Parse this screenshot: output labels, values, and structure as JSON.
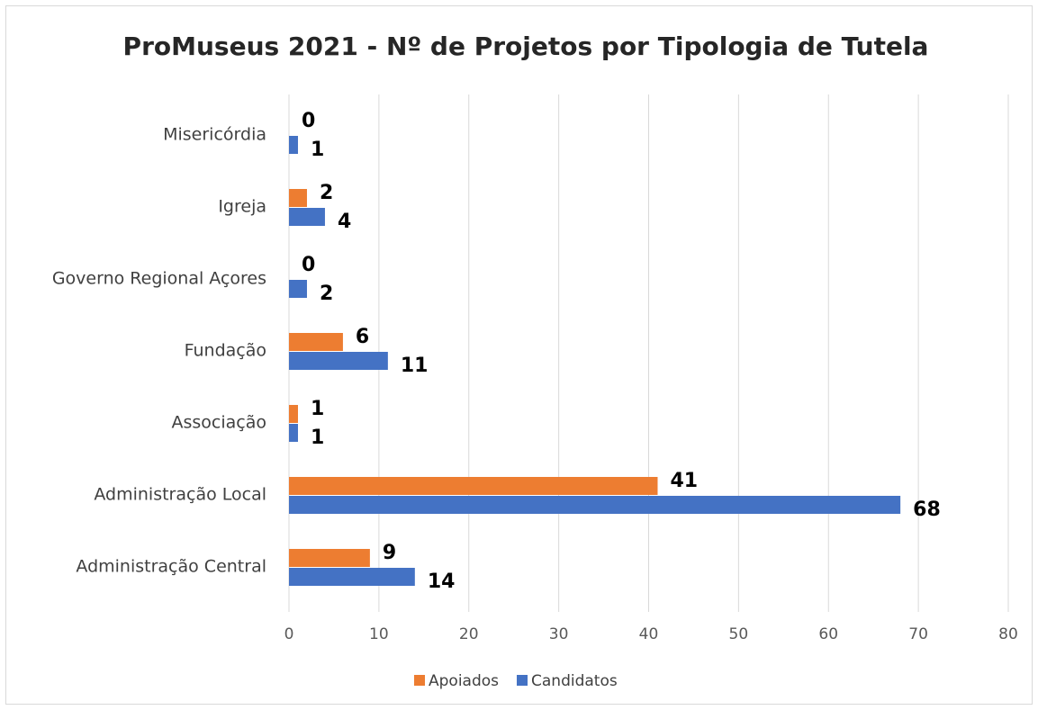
{
  "chart_data": {
    "type": "hbar",
    "title": "ProMuseus 2021 - Nº de Projetos por Tipologia de Tutela",
    "categories": [
      "Administração Central",
      "Administração Local",
      "Associação",
      "Fundação",
      "Governo Regional Açores",
      "Igreja",
      "Misericórdia"
    ],
    "series": [
      {
        "name": "Apoiados",
        "color": "#ed7d31",
        "values": [
          9,
          41,
          1,
          6,
          0,
          2,
          0
        ]
      },
      {
        "name": "Candidatos",
        "color": "#4472c4",
        "values": [
          14,
          68,
          1,
          11,
          2,
          4,
          1
        ]
      }
    ],
    "xlim": [
      0,
      80
    ],
    "xticks": [
      0,
      10,
      20,
      30,
      40,
      50,
      60,
      70,
      80
    ],
    "grid": true,
    "legend": "bottom"
  }
}
